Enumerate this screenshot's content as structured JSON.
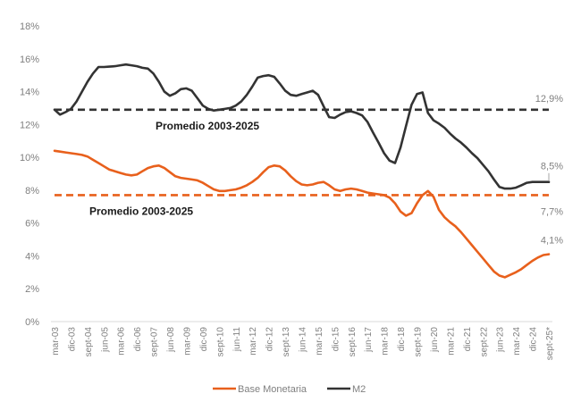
{
  "chart_data": {
    "type": "line",
    "title": "",
    "xlabel": "",
    "ylabel": "",
    "ylim": [
      0,
      18
    ],
    "yticks": [
      0,
      2,
      4,
      6,
      8,
      10,
      12,
      14,
      16,
      18
    ],
    "ytick_labels": [
      "0%",
      "2%",
      "4%",
      "6%",
      "8%",
      "10%",
      "12%",
      "14%",
      "16%",
      "18%"
    ],
    "grid": false,
    "frequency": "quarterly",
    "x_start": "mar-03",
    "x_end": "sept-25*",
    "xtick_labels": [
      "mar-03",
      "dic-03",
      "sept-04",
      "jun-05",
      "mar-06",
      "dic-06",
      "sept-07",
      "jun-08",
      "mar-09",
      "dic-09",
      "sept-10",
      "jun-11",
      "mar-12",
      "dic-12",
      "sept-13",
      "jun-14",
      "mar-15",
      "dic-15",
      "sept-16",
      "jun-17",
      "mar-18",
      "dic-18",
      "sept-19",
      "jun-20",
      "mar-21",
      "dic-21",
      "sept-22",
      "jun-23",
      "mar-24",
      "dic-24",
      "sept-25*"
    ],
    "xtick_every_n_points": 3,
    "series": [
      {
        "name": "Base Monetaria",
        "color": "#e8601c",
        "values": [
          10.4,
          10.35,
          10.3,
          10.25,
          10.2,
          10.15,
          10.05,
          9.85,
          9.65,
          9.45,
          9.25,
          9.15,
          9.05,
          8.95,
          8.9,
          8.95,
          9.15,
          9.35,
          9.45,
          9.5,
          9.35,
          9.1,
          8.85,
          8.75,
          8.7,
          8.65,
          8.6,
          8.45,
          8.25,
          8.05,
          7.95,
          7.95,
          8.0,
          8.05,
          8.15,
          8.3,
          8.5,
          8.75,
          9.1,
          9.4,
          9.5,
          9.45,
          9.2,
          8.85,
          8.55,
          8.35,
          8.3,
          8.35,
          8.45,
          8.5,
          8.3,
          8.05,
          7.95,
          8.05,
          8.1,
          8.05,
          7.95,
          7.85,
          7.8,
          7.75,
          7.7,
          7.55,
          7.2,
          6.7,
          6.45,
          6.6,
          7.2,
          7.7,
          7.95,
          7.6,
          6.8,
          6.35,
          6.05,
          5.8,
          5.45,
          5.05,
          4.65,
          4.25,
          3.85,
          3.45,
          3.05,
          2.8,
          2.7,
          2.85,
          3.0,
          3.2,
          3.45,
          3.7,
          3.9,
          4.05,
          4.1
        ]
      },
      {
        "name": "M2",
        "color": "#333333",
        "values": [
          12.9,
          12.6,
          12.75,
          12.95,
          13.4,
          14.0,
          14.6,
          15.1,
          15.5,
          15.5,
          15.52,
          15.55,
          15.6,
          15.65,
          15.6,
          15.55,
          15.45,
          15.4,
          15.1,
          14.6,
          14.0,
          13.75,
          13.9,
          14.15,
          14.2,
          14.05,
          13.6,
          13.15,
          12.95,
          12.85,
          12.9,
          12.95,
          13.0,
          13.15,
          13.4,
          13.8,
          14.3,
          14.85,
          14.95,
          15.0,
          14.9,
          14.5,
          14.05,
          13.8,
          13.75,
          13.85,
          13.95,
          14.05,
          13.8,
          13.1,
          12.45,
          12.4,
          12.6,
          12.75,
          12.8,
          12.7,
          12.55,
          12.15,
          11.5,
          10.9,
          10.25,
          9.8,
          9.65,
          10.6,
          11.9,
          13.2,
          13.85,
          13.95,
          12.7,
          12.25,
          12.05,
          11.8,
          11.45,
          11.15,
          10.9,
          10.6,
          10.25,
          9.95,
          9.55,
          9.15,
          8.65,
          8.2,
          8.1,
          8.1,
          8.15,
          8.3,
          8.45,
          8.5,
          8.5,
          8.5,
          8.5
        ]
      }
    ],
    "reference_lines": [
      {
        "name": "Promedio M2",
        "value": 12.9,
        "color": "#333333",
        "style": "dashed",
        "label": "Promedio 2003-2025",
        "value_label": "12,9%"
      },
      {
        "name": "Promedio Base Monetaria",
        "value": 7.7,
        "color": "#e8601c",
        "style": "dashed",
        "label": "Promedio 2003-2025",
        "value_label": "7,7%"
      }
    ],
    "annotations": [
      {
        "series": "M2",
        "text": "8,5%",
        "at": "sept-25*"
      },
      {
        "series": "Base Monetaria",
        "text": "4,1%",
        "at": "sept-25*"
      }
    ],
    "legend": {
      "placement": "bottom-center",
      "entries": [
        {
          "label": "Base Monetaria",
          "color": "#e8601c"
        },
        {
          "label": "M2",
          "color": "#333333"
        }
      ]
    }
  }
}
